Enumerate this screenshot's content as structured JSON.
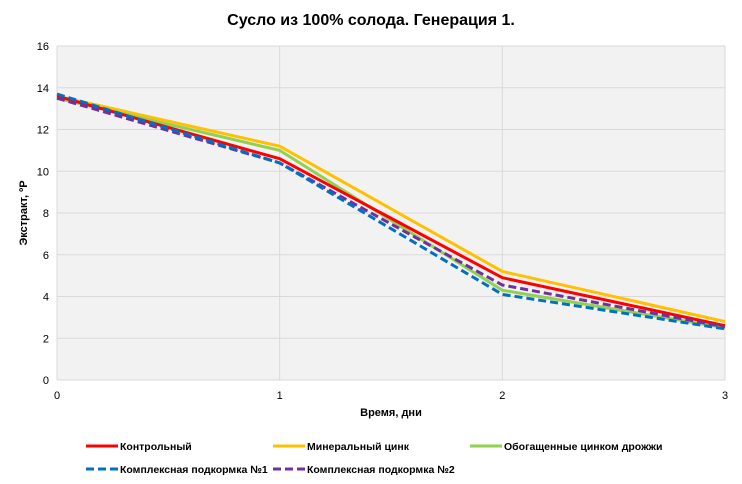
{
  "chart_data": {
    "type": "line",
    "title": "Сусло из 100% солода. Генерация 1.",
    "xlabel": "Время, дни",
    "ylabel": "Экстракт, ºР",
    "xlim": [
      0,
      3
    ],
    "ylim": [
      0,
      16
    ],
    "x_ticks": [
      "0",
      "1",
      "2",
      "3"
    ],
    "y_ticks": [
      "0",
      "2",
      "4",
      "6",
      "8",
      "10",
      "12",
      "14",
      "16"
    ],
    "grid": true,
    "legend_position": "bottom",
    "x": [
      0,
      1,
      2,
      3
    ],
    "series": [
      {
        "name": "Контрольный",
        "color": "#ff0000",
        "dash": false,
        "values": [
          13.6,
          10.6,
          4.9,
          2.6
        ]
      },
      {
        "name": "Минеральный цинк",
        "color": "#ffc000",
        "dash": false,
        "values": [
          13.6,
          11.2,
          5.2,
          2.8
        ]
      },
      {
        "name": "Обогащенные цинком дрожжи",
        "color": "#92d050",
        "dash": false,
        "values": [
          13.5,
          11.0,
          4.3,
          2.5
        ]
      },
      {
        "name": "Комплексная подкормка №1",
        "color": "#0070c0",
        "dash": true,
        "values": [
          13.7,
          10.4,
          4.1,
          2.45
        ]
      },
      {
        "name": "Комплексная подкормка №2",
        "color": "#7030a0",
        "dash": true,
        "values": [
          13.5,
          10.4,
          4.55,
          2.55
        ]
      }
    ]
  }
}
